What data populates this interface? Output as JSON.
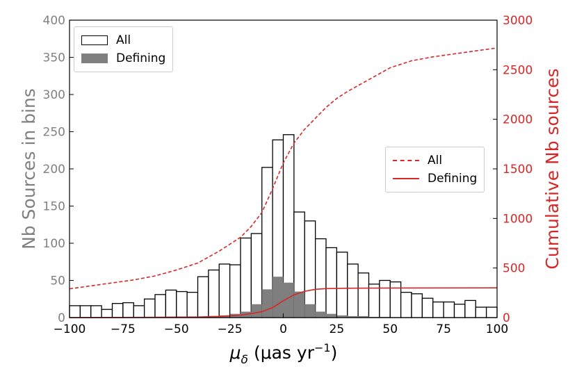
{
  "chart_data": {
    "type": "bar",
    "left_axis_label": "Nb Sources in  bins",
    "right_axis_label": "Cumulative Nb sources",
    "xlabel_main": "μ",
    "xlabel_sub": "δ",
    "xlabel_units": "(μas yr",
    "xlabel_exp": "−1",
    "xlabel_close": ")",
    "xlim": [
      -100,
      100
    ],
    "ylim_left": [
      0,
      400
    ],
    "ylim_right": [
      0,
      3000
    ],
    "x_ticks": [
      -100,
      -75,
      -50,
      -25,
      0,
      25,
      50,
      75,
      100
    ],
    "x_tick_labels": [
      "−100",
      "−75",
      "−50",
      "−25",
      "0",
      "25",
      "50",
      "75",
      "100"
    ],
    "y_left_ticks": [
      0,
      50,
      100,
      150,
      200,
      250,
      300,
      350,
      400
    ],
    "y_right_ticks": [
      0,
      500,
      1000,
      1500,
      2000,
      2500,
      3000
    ],
    "bin_width": 5,
    "bin_left_edges": [
      -100,
      -95,
      -90,
      -85,
      -80,
      -75,
      -70,
      -65,
      -60,
      -55,
      -50,
      -45,
      -40,
      -35,
      -30,
      -25,
      -20,
      -15,
      -10,
      -5,
      0,
      5,
      10,
      15,
      20,
      25,
      30,
      35,
      40,
      45,
      50,
      55,
      60,
      65,
      70,
      75,
      80,
      85,
      90,
      95
    ],
    "series": [
      {
        "name": "All",
        "kind": "histogram-outline",
        "axis": "left",
        "values": [
          16,
          16,
          16,
          11,
          19,
          20,
          16,
          25,
          31,
          37,
          35,
          34,
          55,
          64,
          72,
          71,
          107,
          113,
          202,
          239,
          246,
          142,
          130,
          106,
          94,
          88,
          72,
          60,
          45,
          50,
          48,
          34,
          32,
          26,
          21,
          21,
          18,
          23,
          14,
          14
        ]
      },
      {
        "name": "Defining",
        "kind": "histogram-filled",
        "axis": "left",
        "values": [
          0,
          0,
          0,
          0,
          0,
          0,
          0,
          0,
          0,
          0,
          1,
          1,
          1,
          2,
          3,
          5,
          8,
          18,
          38,
          55,
          47,
          35,
          18,
          8,
          5,
          3,
          2,
          2,
          1,
          1,
          0,
          0,
          0,
          0,
          0,
          0,
          0,
          0,
          0,
          0
        ]
      },
      {
        "name": "All",
        "kind": "cumulative-dashed",
        "axis": "right",
        "x": [
          -100,
          -90,
          -80,
          -70,
          -60,
          -50,
          -40,
          -30,
          -20,
          -15,
          -10,
          -5,
          0,
          5,
          10,
          15,
          20,
          25,
          30,
          40,
          50,
          60,
          70,
          80,
          90,
          100
        ],
        "values": [
          290,
          320,
          350,
          380,
          420,
          480,
          550,
          670,
          810,
          920,
          1060,
          1300,
          1560,
          1760,
          1900,
          2010,
          2120,
          2210,
          2280,
          2400,
          2520,
          2590,
          2630,
          2660,
          2690,
          2720
        ]
      },
      {
        "name": "Defining",
        "kind": "cumulative-solid",
        "axis": "right",
        "x": [
          -100,
          -60,
          -40,
          -30,
          -20,
          -15,
          -10,
          -5,
          0,
          5,
          10,
          15,
          20,
          30,
          50,
          100
        ],
        "values": [
          0,
          3,
          6,
          12,
          25,
          40,
          60,
          100,
          170,
          230,
          265,
          285,
          292,
          296,
          298,
          300
        ]
      }
    ],
    "legend_left": {
      "position": "upper-left",
      "entries": [
        "All",
        "Defining"
      ]
    },
    "legend_right": {
      "position": "center-right",
      "entries": [
        "All",
        "Defining"
      ]
    },
    "colors": {
      "left_axis": "#808080",
      "right_axis": "#d62728",
      "defining_fill": "#7f7f7f",
      "cumulative": "#d62728"
    },
    "grid": false
  }
}
